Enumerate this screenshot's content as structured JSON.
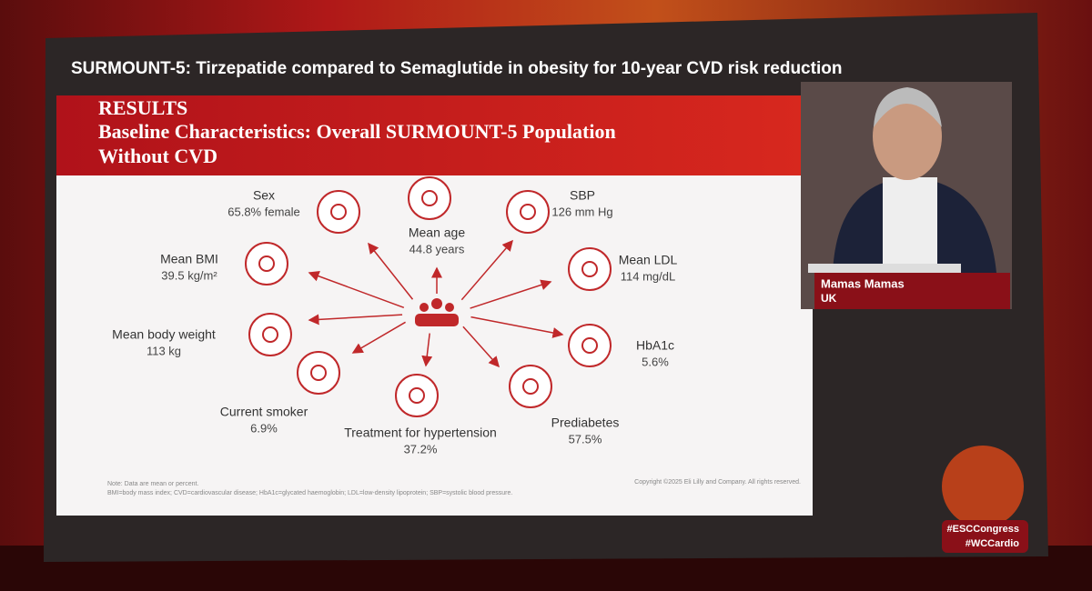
{
  "header": {
    "title": "SURMOUNT-5: Tirzepatide compared to Semaglutide in obesity for 10-year CVD risk reduction"
  },
  "slide": {
    "title": [
      "RESULTS",
      "Baseline Characteristics: Overall SURMOUNT-5 Population",
      "Without CVD"
    ],
    "items": [
      {
        "label": "Sex",
        "value": "65.8% female"
      },
      {
        "label": "Mean age",
        "value": "44.8 years"
      },
      {
        "label": "SBP",
        "value": "126 mm Hg"
      },
      {
        "label": "Mean BMI",
        "value": "39.5 kg/m²"
      },
      {
        "label": "Mean LDL",
        "value": "114 mg/dL"
      },
      {
        "label": "Mean body weight",
        "value": "113 kg"
      },
      {
        "label": "HbA1c",
        "value": "5.6%"
      },
      {
        "label": "Current smoker",
        "value": "6.9%"
      },
      {
        "label": "Treatment for hypertension",
        "value": "37.2%"
      },
      {
        "label": "Prediabetes",
        "value": "57.5%"
      }
    ],
    "notes": [
      "Note: Data are mean or percent.",
      "BMI=body mass index; CVD=cardiovascular disease; HbA1c=glycated haemoglobin; LDL=low-density lipoprotein; SBP=systolic blood pressure."
    ],
    "copyright": "Copyright ©2025 Eli Lilly and Company. All rights reserved."
  },
  "speaker": {
    "name": "Mamas Mamas",
    "country": "UK"
  },
  "hashtags": [
    "#ESCCongress",
    "#WCCardio"
  ]
}
